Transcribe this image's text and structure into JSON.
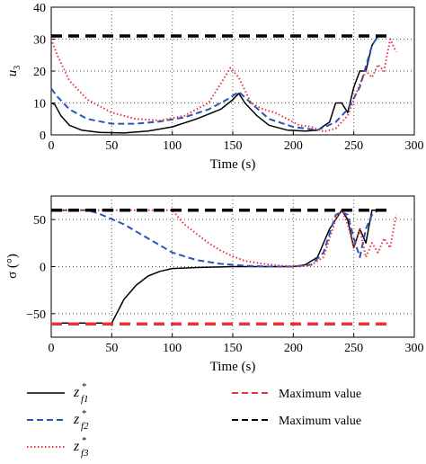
{
  "chart_data": [
    {
      "type": "line",
      "xlabel": "Time (s)",
      "ylabel": "u",
      "ylabel_sub": "3",
      "xlim": [
        0,
        300
      ],
      "ylim": [
        0,
        40
      ],
      "xticks": [
        "0",
        "50",
        "100",
        "150",
        "200",
        "250",
        "300"
      ],
      "yticks": [
        "0",
        "10",
        "20",
        "30",
        "40"
      ],
      "grid": true,
      "series": [
        {
          "key": "f1",
          "color": "#000000",
          "style": "solid",
          "x": [
            0,
            3,
            8,
            15,
            25,
            40,
            60,
            80,
            100,
            120,
            140,
            150,
            155,
            160,
            170,
            180,
            195,
            210,
            220,
            230,
            235,
            240,
            245,
            250,
            255,
            260,
            265,
            270
          ],
          "y": [
            10,
            9.5,
            6,
            3,
            1.5,
            0.8,
            0.6,
            1.2,
            2.5,
            5,
            8,
            11,
            13,
            10,
            6,
            3,
            1.5,
            1.2,
            1.5,
            4,
            10,
            10,
            7,
            15,
            20,
            20,
            28,
            31
          ]
        },
        {
          "key": "f2",
          "color": "#2a55b8",
          "style": "dash",
          "x": [
            0,
            5,
            15,
            30,
            50,
            70,
            90,
            110,
            130,
            145,
            155,
            165,
            180,
            200,
            220,
            235,
            245,
            255,
            265,
            270
          ],
          "y": [
            14.5,
            12,
            8,
            5,
            3.5,
            3.5,
            4.2,
            5.5,
            8,
            11,
            13.5,
            10,
            5,
            2.5,
            1.5,
            4,
            8,
            15,
            28,
            31
          ]
        },
        {
          "key": "f3",
          "color": "#e8323a",
          "style": "dot",
          "x": [
            0,
            5,
            15,
            30,
            50,
            70,
            90,
            110,
            130,
            140,
            148,
            155,
            165,
            175,
            185,
            195,
            205,
            215,
            225,
            235,
            245,
            255,
            260,
            265,
            270,
            275,
            280,
            285
          ],
          "y": [
            30,
            25,
            17,
            11,
            7,
            5,
            4.5,
            6,
            10,
            16,
            21,
            18,
            10,
            8,
            7,
            5,
            3,
            2.5,
            1,
            2,
            6,
            16,
            20,
            18,
            22,
            20,
            30,
            26
          ]
        },
        {
          "key": "max_black",
          "color": "#000000",
          "style": "bigdash",
          "x": [
            0,
            280
          ],
          "y": [
            31,
            31
          ]
        }
      ]
    },
    {
      "type": "line",
      "xlabel": "Time (s)",
      "ylabel": "σ (°)",
      "xlim": [
        0,
        300
      ],
      "ylim": [
        -75,
        75
      ],
      "xticks": [
        "0",
        "50",
        "100",
        "150",
        "200",
        "250",
        "300"
      ],
      "yticks": [
        "50",
        "0",
        "−50"
      ],
      "ytick_values": [
        50,
        0,
        -50
      ],
      "grid": true,
      "series": [
        {
          "key": "f1",
          "color": "#000000",
          "style": "solid",
          "x": [
            0,
            50,
            52,
            60,
            70,
            80,
            90,
            100,
            120,
            150,
            180,
            200,
            210,
            220,
            230,
            240,
            245,
            250,
            255,
            260,
            265,
            270,
            275
          ],
          "y": [
            -60,
            -60,
            -55,
            -35,
            -20,
            -10,
            -5,
            -2,
            -1,
            0,
            0,
            0,
            2,
            10,
            40,
            60,
            50,
            20,
            40,
            25,
            60,
            60,
            60
          ]
        },
        {
          "key": "f2",
          "color": "#2a55b8",
          "style": "dash",
          "x": [
            0,
            30,
            40,
            60,
            80,
            100,
            120,
            140,
            160,
            180,
            200,
            215,
            225,
            235,
            240,
            245,
            250,
            255,
            260,
            265,
            270,
            275
          ],
          "y": [
            60,
            60,
            56,
            45,
            30,
            15,
            7,
            3,
            1,
            0,
            0,
            2,
            15,
            55,
            58,
            55,
            30,
            10,
            40,
            55,
            60,
            60
          ]
        },
        {
          "key": "f3",
          "color": "#e8323a",
          "style": "dot",
          "x": [
            0,
            100,
            110,
            120,
            130,
            140,
            150,
            160,
            175,
            190,
            205,
            215,
            225,
            235,
            240,
            245,
            250,
            255,
            260,
            265,
            270,
            275,
            280,
            285
          ],
          "y": [
            60,
            60,
            45,
            35,
            25,
            17,
            11,
            6,
            3,
            1,
            0,
            2,
            10,
            50,
            60,
            45,
            20,
            40,
            10,
            25,
            15,
            30,
            20,
            55
          ]
        },
        {
          "key": "max_black",
          "color": "#000000",
          "style": "bigdash",
          "x": [
            0,
            280
          ],
          "y": [
            60,
            60
          ]
        },
        {
          "key": "max_red",
          "color": "#e8323a",
          "style": "bigdash",
          "x": [
            0,
            280
          ],
          "y": [
            -61,
            -61
          ]
        }
      ]
    }
  ],
  "legend": [
    {
      "symbol": "z",
      "sup": "*",
      "sub": "f1",
      "color": "#000000",
      "style": "solid"
    },
    {
      "symbol": "z",
      "sup": "*",
      "sub": "f2",
      "color": "#2a55b8",
      "style": "dash"
    },
    {
      "symbol": "z",
      "sup": "*",
      "sub": "f3",
      "color": "#e8323a",
      "style": "dot"
    },
    {
      "label": "Maximum value",
      "color": "#e8323a",
      "style": "dash"
    },
    {
      "label": "Maximum value",
      "color": "#000000",
      "style": "dash"
    }
  ]
}
